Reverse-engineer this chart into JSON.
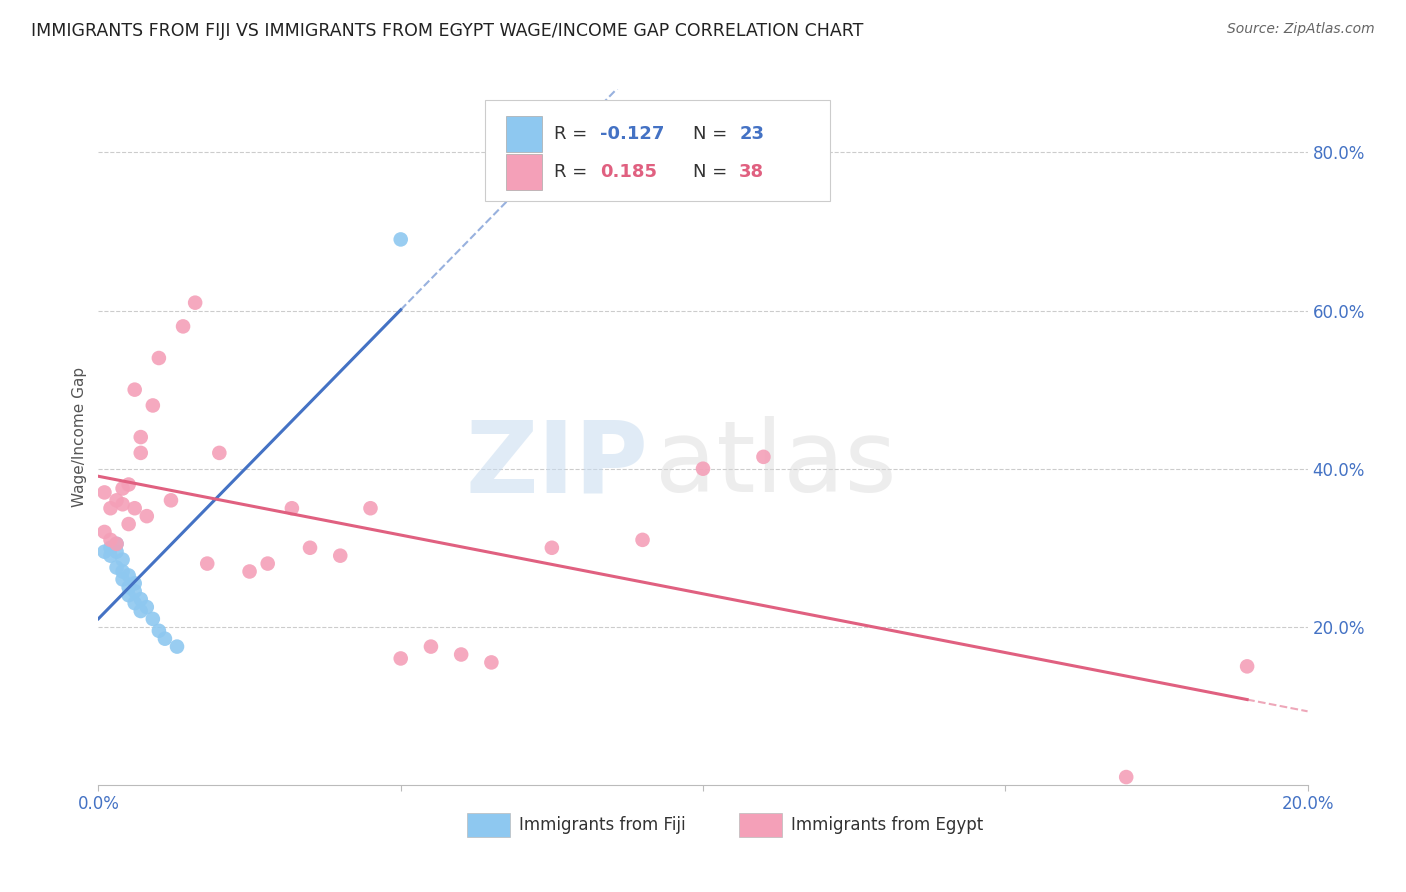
{
  "title": "IMMIGRANTS FROM FIJI VS IMMIGRANTS FROM EGYPT WAGE/INCOME GAP CORRELATION CHART",
  "source": "Source: ZipAtlas.com",
  "ylabel": "Wage/Income Gap",
  "fiji_color": "#8EC8F0",
  "egypt_color": "#F4A0B8",
  "fiji_line_color": "#4472C4",
  "egypt_line_color": "#E06080",
  "fiji_R": -0.127,
  "fiji_N": 23,
  "egypt_R": 0.185,
  "egypt_N": 38,
  "xlim": [
    0.0,
    0.2
  ],
  "ylim": [
    0.0,
    0.88
  ],
  "right_yticks": [
    0.2,
    0.4,
    0.6,
    0.8
  ],
  "watermark_zip": "ZIP",
  "watermark_atlas": "atlas",
  "background_color": "#FFFFFF",
  "grid_color": "#CCCCCC",
  "fiji_scatter_x": [
    0.001,
    0.002,
    0.002,
    0.003,
    0.003,
    0.003,
    0.004,
    0.004,
    0.004,
    0.005,
    0.005,
    0.005,
    0.006,
    0.006,
    0.006,
    0.007,
    0.007,
    0.008,
    0.009,
    0.01,
    0.011,
    0.013,
    0.05
  ],
  "fiji_scatter_y": [
    0.295,
    0.3,
    0.29,
    0.305,
    0.295,
    0.275,
    0.285,
    0.27,
    0.26,
    0.265,
    0.25,
    0.24,
    0.255,
    0.245,
    0.23,
    0.235,
    0.22,
    0.225,
    0.21,
    0.195,
    0.185,
    0.175,
    0.69
  ],
  "egypt_scatter_x": [
    0.001,
    0.001,
    0.002,
    0.002,
    0.003,
    0.003,
    0.004,
    0.004,
    0.005,
    0.005,
    0.006,
    0.006,
    0.007,
    0.007,
    0.008,
    0.009,
    0.01,
    0.012,
    0.014,
    0.016,
    0.018,
    0.02,
    0.025,
    0.028,
    0.032,
    0.035,
    0.04,
    0.045,
    0.05,
    0.055,
    0.06,
    0.065,
    0.075,
    0.09,
    0.1,
    0.11,
    0.17,
    0.19
  ],
  "egypt_scatter_y": [
    0.32,
    0.37,
    0.31,
    0.35,
    0.305,
    0.36,
    0.355,
    0.375,
    0.33,
    0.38,
    0.35,
    0.5,
    0.42,
    0.44,
    0.34,
    0.48,
    0.54,
    0.36,
    0.58,
    0.61,
    0.28,
    0.42,
    0.27,
    0.28,
    0.35,
    0.3,
    0.29,
    0.35,
    0.16,
    0.175,
    0.165,
    0.155,
    0.3,
    0.31,
    0.4,
    0.415,
    0.01,
    0.15
  ]
}
